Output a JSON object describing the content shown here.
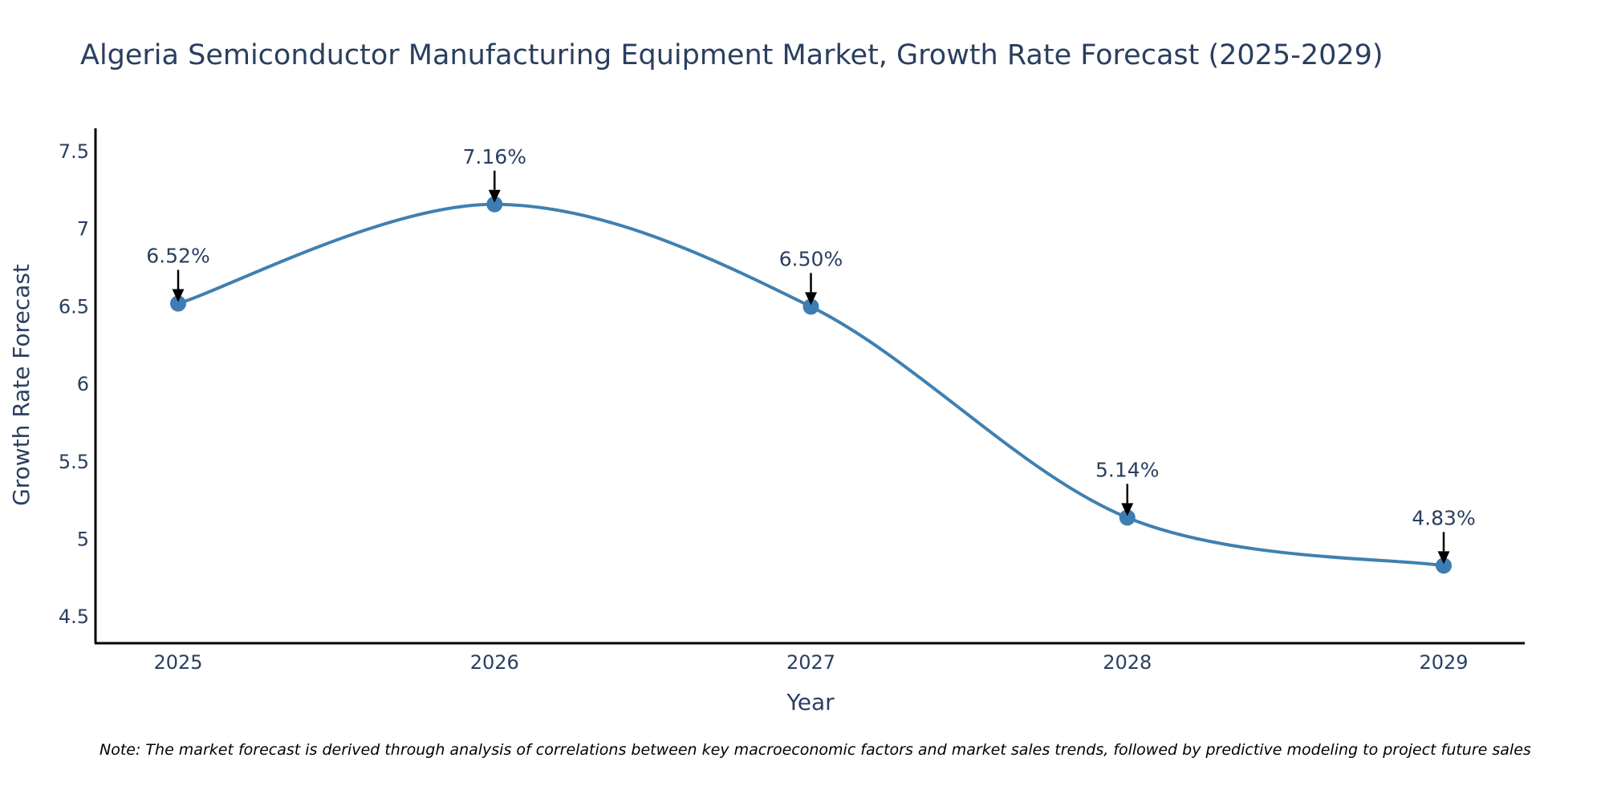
{
  "chart_data": {
    "type": "line",
    "title": "Algeria Semiconductor Manufacturing Equipment Market, Growth Rate Forecast (2025-2029)",
    "xlabel": "Year",
    "ylabel": "Growth Rate Forecast",
    "categories": [
      "2025",
      "2026",
      "2027",
      "2028",
      "2029"
    ],
    "values": [
      6.52,
      7.16,
      6.5,
      5.14,
      4.83
    ],
    "data_labels": [
      "6.52%",
      "7.16%",
      "6.50%",
      "5.14%",
      "4.83%"
    ],
    "ylim": [
      4.33,
      7.65
    ],
    "yticks": [
      4.5,
      5,
      5.5,
      6,
      6.5,
      7,
      7.5
    ],
    "ytick_labels": [
      "4.5",
      "5",
      "5.5",
      "6",
      "6.5",
      "7",
      "7.5"
    ],
    "line_color": "#4080b0",
    "marker_color": "#3d7db3",
    "annotation_arrow_color": "#000000",
    "grid": false,
    "note": "Note: The market forecast is derived through analysis of correlations between key macroeconomic factors and market sales trends, followed by predictive modeling to project future sales"
  }
}
